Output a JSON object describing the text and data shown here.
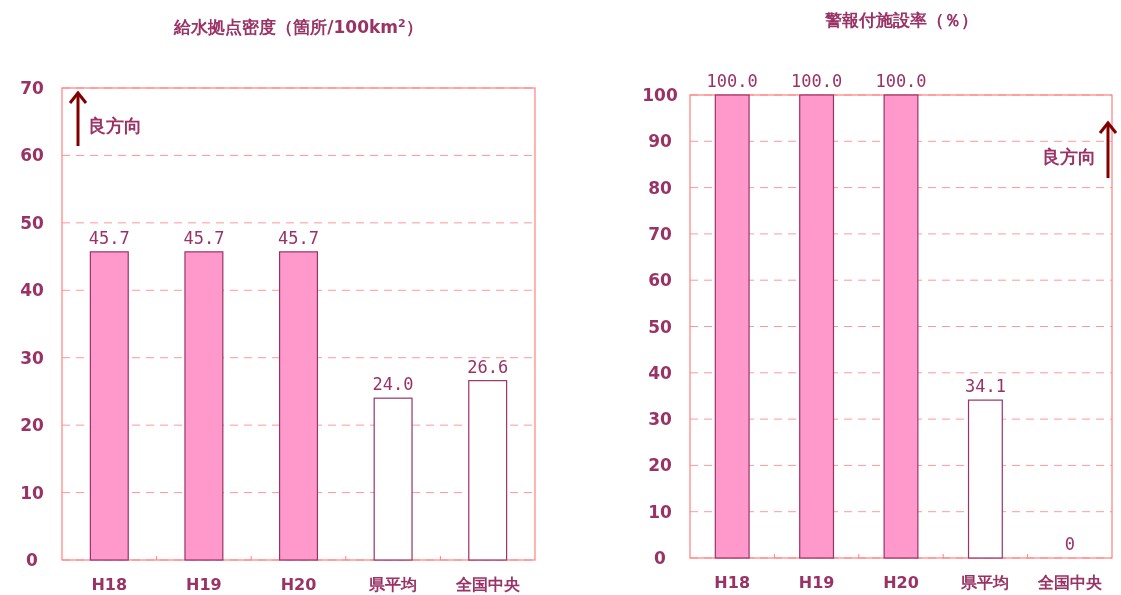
{
  "chart_data": [
    {
      "type": "bar",
      "title": "給水拠点密度（箇所/100km$^{2}$）",
      "categories": [
        "H18",
        "H19",
        "H20",
        "県平均",
        "全国中央"
      ],
      "values": [
        45.7,
        45.7,
        45.7,
        24.0,
        26.6
      ],
      "value_labels": [
        "45.7",
        "45.7",
        "45.7",
        "24.0",
        "26.6"
      ],
      "colors": [
        "#ff99cc",
        "#ff99cc",
        "#ff99cc",
        "#ffffff",
        "#ffffff"
      ],
      "ylim": [
        0,
        70
      ],
      "yticks": [
        0,
        10,
        20,
        30,
        40,
        50,
        60,
        70
      ],
      "grid": "y",
      "annotations": [
        "良方向"
      ]
    },
    {
      "type": "bar",
      "title": "警報付施設率（％）",
      "categories": [
        "H18",
        "H19",
        "H20",
        "県平均",
        "全国中央"
      ],
      "values": [
        100.0,
        100.0,
        100.0,
        34.1,
        0
      ],
      "value_labels": [
        "100.0",
        "100.0",
        "100.0",
        "34.1",
        "0"
      ],
      "colors": [
        "#ff99cc",
        "#ff99cc",
        "#ff99cc",
        "#ffffff",
        "#ffffff"
      ],
      "ylim": [
        0,
        100
      ],
      "yticks": [
        0,
        10,
        20,
        30,
        40,
        50,
        60,
        70,
        80,
        90,
        100
      ],
      "grid": "y",
      "annotations": [
        "良方向"
      ]
    }
  ]
}
